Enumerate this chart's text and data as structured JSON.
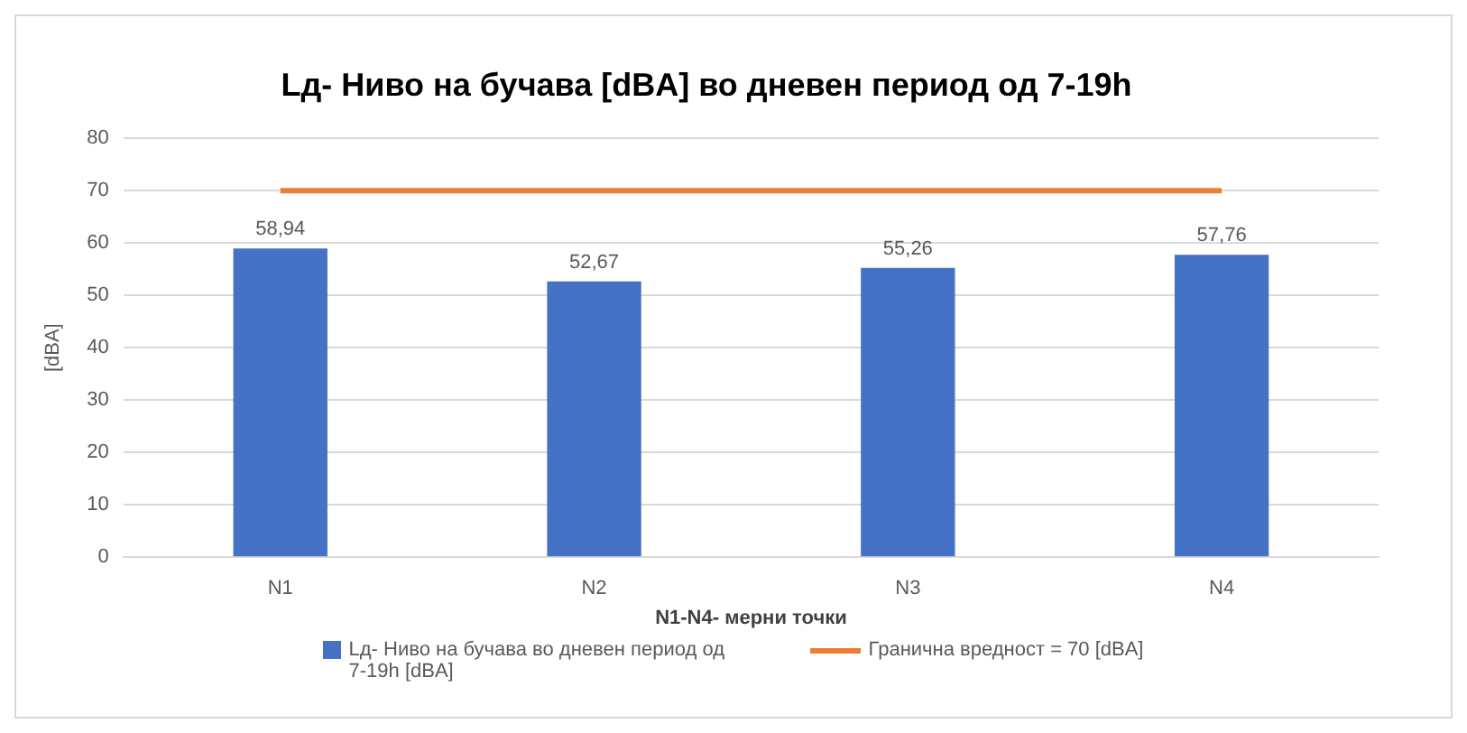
{
  "chart_data": {
    "type": "bar",
    "title": "Lд- Ниво на бучава [dBA] во дневен период од 7-19h",
    "xlabel": "N1-N4- мерни точки",
    "ylabel": "[dBA]",
    "categories": [
      "N1",
      "N2",
      "N3",
      "N4"
    ],
    "series": [
      {
        "name": "Lд- Ниво на бучава во дневен период од 7-19h [dBA]",
        "color": "#4472c4",
        "values": [
          58.94,
          52.67,
          55.26,
          57.76
        ],
        "value_labels": [
          "58,94",
          "52,67",
          "55,26",
          "57,76"
        ]
      },
      {
        "name": "Гранична вредност = 70 [dBA]",
        "type": "line",
        "color": "#ed7d31",
        "values": [
          70,
          70,
          70,
          70
        ],
        "marker": "none"
      }
    ],
    "ylim": [
      0,
      80
    ],
    "yticks": [
      0,
      10,
      20,
      30,
      40,
      50,
      60,
      70,
      80
    ],
    "grid": "y",
    "legend": "bottom"
  }
}
